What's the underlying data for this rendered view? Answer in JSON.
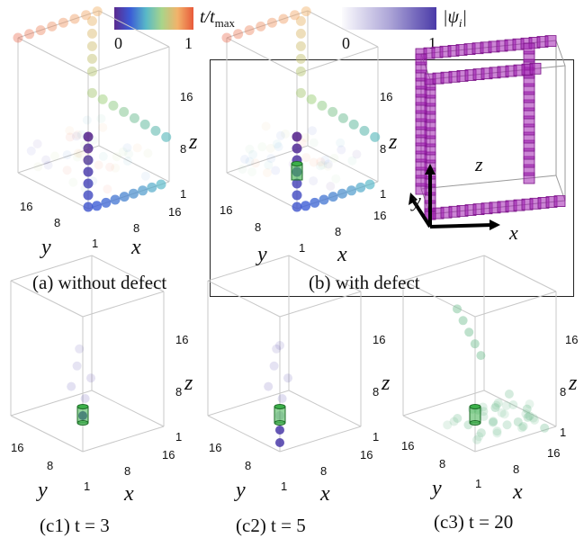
{
  "legend": {
    "time": {
      "label": "t/t",
      "label_sub": "max",
      "min": "0",
      "max": "1"
    },
    "psi": {
      "label": "|ψ",
      "label_sub": "i",
      "label_end": "|",
      "min": "0",
      "max": "1"
    }
  },
  "panels": {
    "a": {
      "caption": "(a) without defect"
    },
    "b": {
      "caption": "(b) with defect"
    },
    "c1": {
      "caption": "(c1) t = 3"
    },
    "c2": {
      "caption": "(c2) t = 5"
    },
    "c3": {
      "caption": "(c3) t = 20"
    }
  },
  "ticks": {
    "t16": "16",
    "t8": "8",
    "t1": "1"
  },
  "axes": {
    "x": "x",
    "y": "y",
    "z": "z"
  },
  "colors": {
    "time_gradient": [
      "#5b2a8f",
      "#3b5bd6",
      "#58b8c8",
      "#a8d48a",
      "#f2b26a",
      "#e85a3a"
    ],
    "psi_color": "#4a3aa8",
    "lattice_magenta": "#a020b0",
    "defect_green": "#3cb04a"
  }
}
